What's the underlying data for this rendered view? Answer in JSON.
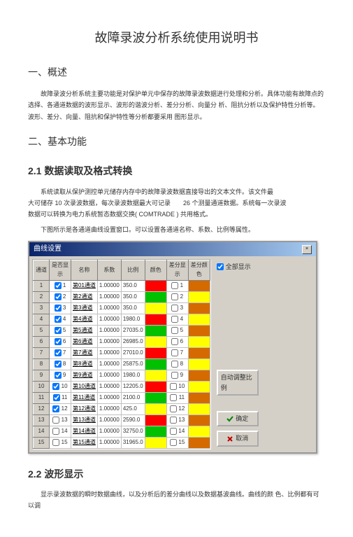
{
  "doc": {
    "title": "故障录波分析系统使用说明书",
    "h_overview": "一、概述",
    "p_overview": "故障录波分析系统主要功能是对保护单元中保存的故障录波数据进行处理和分析。具体功能有故障点的选择、各通道数据的波形显示、波形的谐波分析、差分分析、向量分 析、阻抗分析以及保护特性分析等。波形、差分、向量、阻抗和保护特性等分析都要采用 图形显示。",
    "h_func": "二、基本功能",
    "h_2_1": "2.1 数据读取及格式转换",
    "p_2_1a": "系统读取从保护测控单元储存内存中的故障录波数据直接导出的文本文件。该文件最",
    "p_2_1b": "大可储存 10 次录波数据，每次录波数据最大可记录　　26 个测量通道数据。系统每一次录波",
    "p_2_1c": "数据可以转换为电力系统暂态数据交换( COMTRADE ) 共用格式。",
    "p_2_1d": "下图所示是各通道曲线设置窗口。可以设置各通道名称、系数、比例等属性。",
    "h_2_2": "2.2 波形显示",
    "p_2_2": "显示录波数据的瞬时数据曲线，以及分析后的差分曲线以及数据基波曲线。曲线的颜 色、比例都有可以调"
  },
  "win": {
    "title": "曲线设置",
    "headers": [
      "通道",
      "是否显示",
      "名称",
      "系数",
      "比例",
      "颜色",
      "差分显示",
      "差分颜色"
    ],
    "show_all": "全部显示",
    "auto_scale": "自动调整比例",
    "ok": "确定",
    "cancel": "取消",
    "rows": [
      {
        "i": 1,
        "show": true,
        "name": "第01通道",
        "coef": "1.00000",
        "ratio": "350.0",
        "color": "#ff0000",
        "dshow": false,
        "dcolor": "#d46a00"
      },
      {
        "i": 2,
        "show": true,
        "name": "第2通道",
        "coef": "1.00000",
        "ratio": "350.0",
        "color": "#00c000",
        "dshow": false,
        "dcolor": "#ffff00"
      },
      {
        "i": 3,
        "show": true,
        "name": "第3通道",
        "coef": "1.00000",
        "ratio": "350.0",
        "color": "#ffff00",
        "dshow": false,
        "dcolor": "#d46a00"
      },
      {
        "i": 4,
        "show": true,
        "name": "第4通道",
        "coef": "1.00000",
        "ratio": "1980.0",
        "color": "#ff0000",
        "dshow": false,
        "dcolor": "#ffff00"
      },
      {
        "i": 5,
        "show": true,
        "name": "第5通道",
        "coef": "1.00000",
        "ratio": "27035.0",
        "color": "#00c000",
        "dshow": false,
        "dcolor": "#d46a00"
      },
      {
        "i": 6,
        "show": true,
        "name": "第6通道",
        "coef": "1.00000",
        "ratio": "26985.0",
        "color": "#ffff00",
        "dshow": false,
        "dcolor": "#ffff00"
      },
      {
        "i": 7,
        "show": true,
        "name": "第7通道",
        "coef": "1.00000",
        "ratio": "27010.0",
        "color": "#ff0000",
        "dshow": false,
        "dcolor": "#d46a00"
      },
      {
        "i": 8,
        "show": true,
        "name": "第8通道",
        "coef": "1.00000",
        "ratio": "25875.0",
        "color": "#00c000",
        "dshow": false,
        "dcolor": "#ffff00"
      },
      {
        "i": 9,
        "show": true,
        "name": "第9通道",
        "coef": "1.00000",
        "ratio": "1980.0",
        "color": "#ffff00",
        "dshow": false,
        "dcolor": "#d46a00"
      },
      {
        "i": 10,
        "show": true,
        "name": "第10通道",
        "coef": "1.00000",
        "ratio": "12205.0",
        "color": "#ff0000",
        "dshow": false,
        "dcolor": "#ffff00"
      },
      {
        "i": 11,
        "show": true,
        "name": "第11通道",
        "coef": "1.00000",
        "ratio": "2100.0",
        "color": "#00c000",
        "dshow": false,
        "dcolor": "#d46a00"
      },
      {
        "i": 12,
        "show": true,
        "name": "第12通道",
        "coef": "1.00000",
        "ratio": "425.0",
        "color": "#ffff00",
        "dshow": false,
        "dcolor": "#ffff00"
      },
      {
        "i": 13,
        "show": false,
        "name": "第13通道",
        "coef": "1.00000",
        "ratio": "2590.0",
        "color": "#ff0000",
        "dshow": false,
        "dcolor": "#d46a00"
      },
      {
        "i": 14,
        "show": false,
        "name": "第14通道",
        "coef": "1.00000",
        "ratio": "32750.0",
        "color": "#00c000",
        "dshow": false,
        "dcolor": "#ffff00"
      },
      {
        "i": 15,
        "show": false,
        "name": "第15通道",
        "coef": "1.00000",
        "ratio": "31965.0",
        "color": "#ffff00",
        "dshow": false,
        "dcolor": "#d46a00"
      }
    ]
  }
}
